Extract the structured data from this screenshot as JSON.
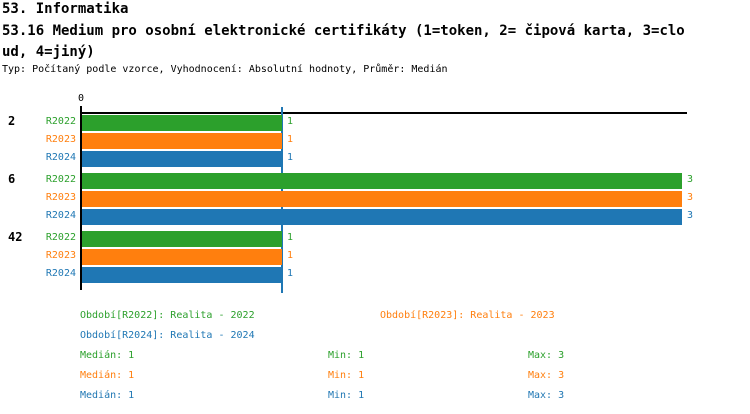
{
  "header": {
    "section_title": "53. Informatika",
    "question_title_line1": "53.16 Medium pro osobní elektronické certifikáty (1=token, 2= čipová karta, 3=clo",
    "question_title_line2": "ud, 4=jiný)",
    "meta": "Typ: Počítaný podle vzorce, Vyhodnocení: Absolutní hodnoty, Průměr: Medián"
  },
  "colors": {
    "green": "#2ca02c",
    "orange": "#ff7f0e",
    "blue": "#1f77b4",
    "axis": "#000000",
    "median_line": "#1f77b4"
  },
  "chart_data": {
    "type": "bar",
    "orientation": "horizontal",
    "title": "53.16 Medium pro osobní elektronické certifikáty (1=token, 2= čipová karta, 3=cloud, 4=jiný)",
    "categories": [
      "2",
      "6",
      "42"
    ],
    "series": [
      {
        "name": "R2022",
        "color_key": "green",
        "values": [
          1,
          3,
          1
        ]
      },
      {
        "name": "R2023",
        "color_key": "orange",
        "values": [
          1,
          3,
          1
        ]
      },
      {
        "name": "R2024",
        "color_key": "blue",
        "values": [
          1,
          3,
          1
        ]
      }
    ],
    "x_axis": {
      "tick_labels": [
        "0"
      ],
      "range": [
        0,
        3
      ]
    },
    "value_labels_shown": true,
    "median_line_value": 1,
    "legend_position": "bottom",
    "grid": false
  },
  "legend": {
    "items": [
      {
        "label": "Období[R2022]: Realita - 2022",
        "color_key": "green"
      },
      {
        "label": "Období[R2023]: Realita - 2023",
        "color_key": "orange"
      },
      {
        "label": "Období[R2024]: Realita - 2024",
        "color_key": "blue"
      }
    ]
  },
  "stats": {
    "rows": [
      {
        "color_key": "green",
        "median": "Medián: 1",
        "min": "Min: 1",
        "max": "Max: 3"
      },
      {
        "color_key": "orange",
        "median": "Medián: 1",
        "min": "Min: 1",
        "max": "Max: 3"
      },
      {
        "color_key": "blue",
        "median": "Medián: 1",
        "min": "Min: 1",
        "max": "Max: 3"
      }
    ]
  }
}
